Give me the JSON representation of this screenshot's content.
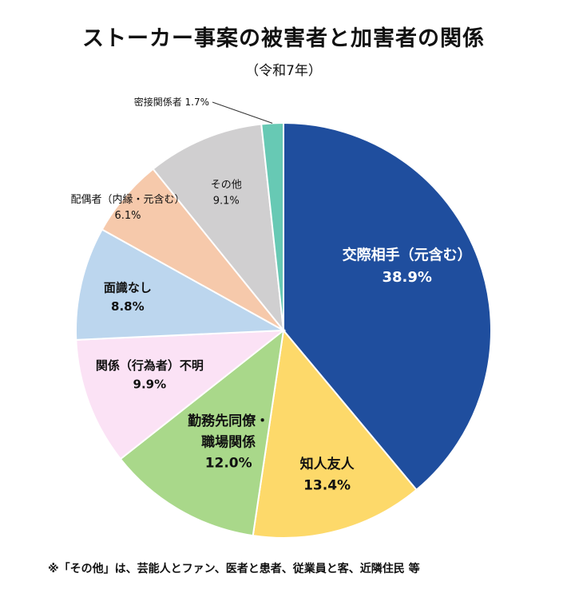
{
  "title": "ストーカー事案の被害者と加害者の関係",
  "subtitle": "（令和7年）",
  "footnote": "※「その他」は、芸能人とファン、医者と患者、従業員と客、近隣住民 等",
  "chart_data": {
    "type": "pie",
    "title": "ストーカー事案の被害者と加害者の関係",
    "subtitle": "（令和7年）",
    "slices": [
      {
        "label": "交際相手（元含む）",
        "value_label": "38.9%",
        "value": 38.9,
        "color": "#1f4e9e"
      },
      {
        "label": "知人友人",
        "value_label": "13.4%",
        "value": 13.4,
        "color": "#fdd96a"
      },
      {
        "label": "勤務先同僚・\n職場関係",
        "value_label": "12.0%",
        "value": 12.0,
        "color": "#a9d88a"
      },
      {
        "label": "関係（行為者）不明",
        "value_label": "9.9%",
        "value": 9.9,
        "color": "#fbe2f5"
      },
      {
        "label": "面識なし",
        "value_label": "8.8%",
        "value": 8.8,
        "color": "#bcd6ee"
      },
      {
        "label": "配偶者（内縁・元含む）",
        "value_label": "6.1%",
        "value": 6.1,
        "color": "#f6c9ab"
      },
      {
        "label": "その他",
        "value_label": "9.1%",
        "value": 9.1,
        "color": "#d0cfd0"
      },
      {
        "label": "密接関係者",
        "value_label": "1.7%",
        "value": 1.7,
        "color": "#67c9b4"
      }
    ]
  }
}
